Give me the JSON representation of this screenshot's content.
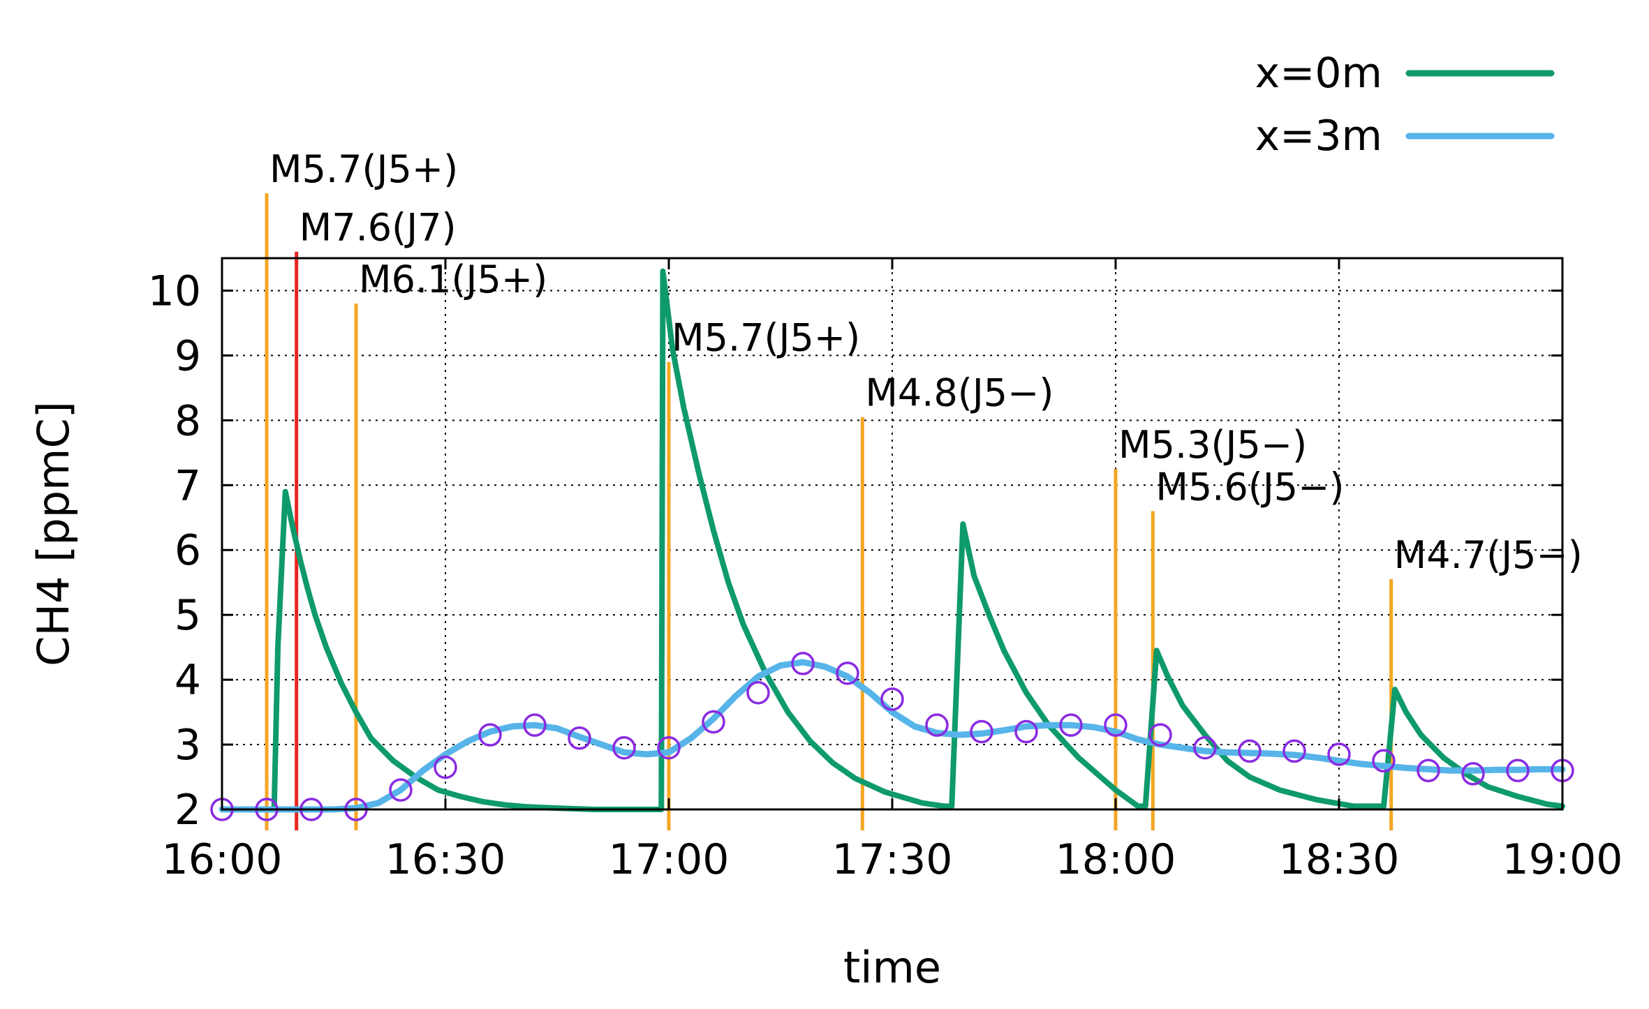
{
  "chart_data": {
    "type": "line",
    "title": "",
    "xlabel": "time",
    "ylabel": "CH4 [ppmC]",
    "xlim": [
      "16:00",
      "19:00"
    ],
    "ylim": [
      2,
      10.5
    ],
    "x_ticks": [
      "16:00",
      "16:30",
      "17:00",
      "17:30",
      "18:00",
      "18:30",
      "19:00"
    ],
    "y_ticks": [
      2,
      3,
      4,
      5,
      6,
      7,
      8,
      9,
      10
    ],
    "grid": true,
    "legend": {
      "placement": "top-right"
    },
    "series": [
      {
        "name": "x=0m",
        "color": "#0e9a6c",
        "x": [
          "16:00",
          "16:07",
          "16:07.5",
          "16:08.5",
          "16:09.5",
          "16:10.5",
          "16:11.5",
          "16:12.5",
          "16:14",
          "16:16",
          "16:18",
          "16:20",
          "16:23",
          "16:26",
          "16:29",
          "16:32",
          "16:35",
          "16:38",
          "16:41",
          "16:45",
          "16:50",
          "16:55",
          "16:58",
          "16:59",
          "16:59.2",
          "17:00.5",
          "17:02",
          "17:04",
          "17:06",
          "17:08",
          "17:10",
          "17:13",
          "17:16",
          "17:19",
          "17:22",
          "17:25",
          "17:29",
          "17:34",
          "17:37",
          "17:38",
          "17:39.5",
          "17:41",
          "17:43",
          "17:45",
          "17:48",
          "17:51",
          "17:55",
          "18:00",
          "18:03",
          "18:04",
          "18:05.5",
          "18:07",
          "18:09",
          "18:12",
          "18:15",
          "18:18",
          "18:22",
          "18:27",
          "18:32",
          "18:35",
          "18:36",
          "18:37.5",
          "18:39",
          "18:41",
          "18:44",
          "18:47",
          "18:50",
          "18:54",
          "18:58",
          "19:00"
        ],
        "values": [
          2.0,
          2.0,
          4.5,
          6.9,
          6.35,
          5.85,
          5.4,
          5.0,
          4.5,
          3.95,
          3.5,
          3.1,
          2.75,
          2.5,
          2.3,
          2.2,
          2.12,
          2.07,
          2.04,
          2.02,
          2.0,
          2.0,
          2.0,
          2.0,
          10.3,
          9.1,
          8.2,
          7.2,
          6.3,
          5.5,
          4.85,
          4.1,
          3.5,
          3.05,
          2.72,
          2.48,
          2.27,
          2.1,
          2.05,
          2.05,
          6.4,
          5.6,
          5.0,
          4.45,
          3.8,
          3.3,
          2.8,
          2.3,
          2.05,
          2.05,
          4.45,
          4.05,
          3.6,
          3.15,
          2.75,
          2.5,
          2.3,
          2.15,
          2.05,
          2.05,
          2.05,
          3.85,
          3.5,
          3.15,
          2.8,
          2.55,
          2.35,
          2.2,
          2.08,
          2.05
        ]
      },
      {
        "name": "x=3m",
        "color": "#56b4e9",
        "x": [
          "16:00",
          "16:05",
          "16:10",
          "16:15",
          "16:18",
          "16:21",
          "16:24",
          "16:27",
          "16:30",
          "16:33",
          "16:36",
          "16:39",
          "16:42",
          "16:45",
          "16:48",
          "16:51",
          "16:54",
          "16:57",
          "17:00",
          "17:03",
          "17:06",
          "17:09",
          "17:12",
          "17:15",
          "17:18",
          "17:21",
          "17:24",
          "17:27",
          "17:30",
          "17:33",
          "17:36",
          "17:39",
          "17:42",
          "17:45",
          "17:48",
          "17:51",
          "17:54",
          "17:57",
          "18:00",
          "18:03",
          "18:06",
          "18:09",
          "18:12",
          "18:15",
          "18:18",
          "18:21",
          "18:24",
          "18:27",
          "18:30",
          "18:33",
          "18:36",
          "18:39",
          "18:42",
          "18:45",
          "18:48",
          "18:51",
          "18:54",
          "18:57",
          "19:00"
        ],
        "values": [
          2.0,
          2.0,
          2.0,
          2.0,
          2.02,
          2.1,
          2.3,
          2.6,
          2.85,
          3.05,
          3.2,
          3.28,
          3.3,
          3.25,
          3.12,
          3.0,
          2.88,
          2.85,
          2.88,
          3.1,
          3.4,
          3.75,
          4.05,
          4.22,
          4.27,
          4.2,
          4.05,
          3.8,
          3.5,
          3.28,
          3.18,
          3.15,
          3.17,
          3.22,
          3.28,
          3.3,
          3.3,
          3.27,
          3.2,
          3.08,
          3.0,
          2.95,
          2.9,
          2.88,
          2.87,
          2.86,
          2.84,
          2.8,
          2.75,
          2.7,
          2.67,
          2.64,
          2.62,
          2.6,
          2.6,
          2.61,
          2.61,
          2.62,
          2.62
        ]
      },
      {
        "name": "",
        "marker": "circle",
        "color": "#8a2be2",
        "x": [
          "16:00",
          "16:06",
          "16:12",
          "16:18",
          "16:24",
          "16:30",
          "16:36",
          "16:42",
          "16:48",
          "16:54",
          "17:00",
          "17:06",
          "17:12",
          "17:18",
          "17:24",
          "17:30",
          "17:36",
          "17:42",
          "17:48",
          "17:54",
          "18:00",
          "18:06",
          "18:12",
          "18:18",
          "18:24",
          "18:30",
          "18:36",
          "18:42",
          "18:48",
          "18:54",
          "19:00"
        ],
        "values": [
          2.0,
          2.0,
          2.0,
          2.0,
          2.3,
          2.65,
          3.15,
          3.3,
          3.1,
          2.95,
          2.95,
          3.35,
          3.8,
          4.25,
          4.1,
          3.7,
          3.3,
          3.2,
          3.2,
          3.3,
          3.3,
          3.15,
          2.95,
          2.9,
          2.9,
          2.85,
          2.75,
          2.6,
          2.55,
          2.6,
          2.6
        ]
      }
    ],
    "annotations": [
      {
        "x": "16:06",
        "label": "M5.7(J5+)",
        "line_top": 11.5,
        "color": "#f5a623",
        "text_color": "#000000"
      },
      {
        "x": "16:10",
        "label": "M7.6(J7)",
        "line_top": 10.6,
        "color": "#e8251f",
        "text_color": "#e8251f"
      },
      {
        "x": "16:18",
        "label": "M6.1(J5+)",
        "line_top": 9.8,
        "color": "#f5a623",
        "text_color": "#000000"
      },
      {
        "x": "17:00",
        "label": "M5.7(J5+)",
        "line_top": 8.9,
        "color": "#f5a623",
        "text_color": "#000000"
      },
      {
        "x": "17:26",
        "label": "M4.8(J5−)",
        "line_top": 8.05,
        "color": "#f5a623",
        "text_color": "#000000"
      },
      {
        "x": "18:00",
        "label": "M5.3(J5−)",
        "line_top": 7.25,
        "color": "#f5a623",
        "text_color": "#000000"
      },
      {
        "x": "18:05",
        "label": "M5.6(J5−)",
        "line_top": 6.6,
        "color": "#f5a623",
        "text_color": "#000000"
      },
      {
        "x": "18:37",
        "label": "M4.7(J5−)",
        "line_top": 5.55,
        "color": "#f5a623",
        "text_color": "#000000"
      }
    ]
  }
}
